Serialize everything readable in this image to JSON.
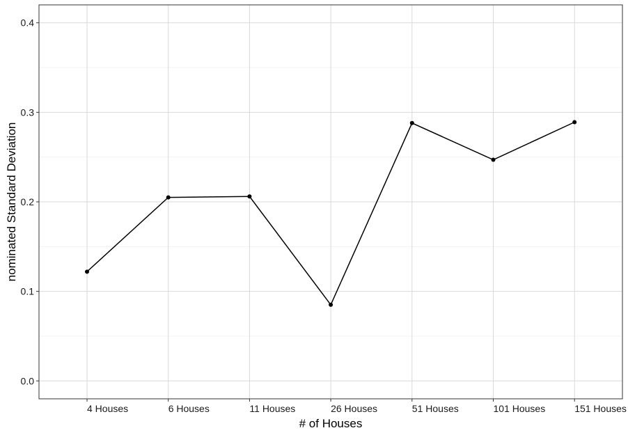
{
  "chart_data": {
    "type": "line",
    "title": "",
    "xlabel": "# of Houses",
    "ylabel": "nominated Standard Deviation",
    "categories": [
      "4 Houses",
      "6 Houses",
      "11 Houses",
      "26 Houses",
      "51 Houses",
      "101 Houses",
      "151 Houses"
    ],
    "values": [
      0.122,
      0.205,
      0.206,
      0.085,
      0.288,
      0.247,
      0.289
    ],
    "ylim": [
      -0.02,
      0.42
    ],
    "yticks": [
      "0.0",
      "0.1",
      "0.2",
      "0.3",
      "0.4"
    ],
    "grid": true,
    "legend": "none",
    "colors": {
      "line": "#000000",
      "grid": "#d9d9d9",
      "panel_border": "#333333"
    }
  }
}
